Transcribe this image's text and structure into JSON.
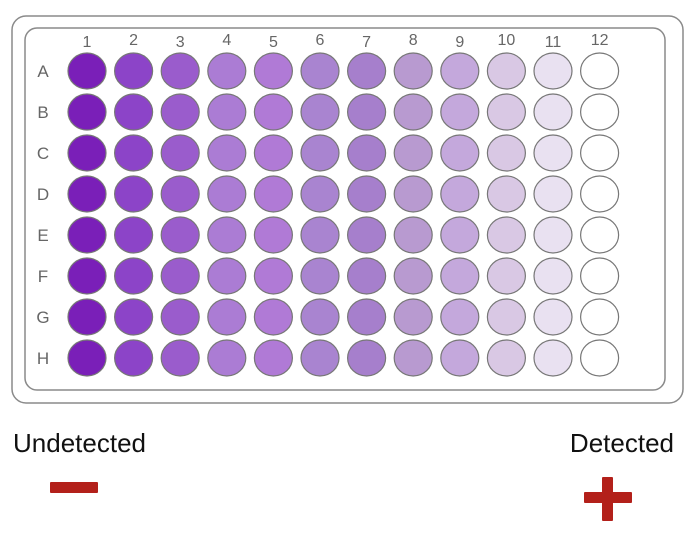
{
  "plate": {
    "columns": [
      "1",
      "2",
      "3",
      "4",
      "5",
      "6",
      "7",
      "8",
      "9",
      "10",
      "11",
      "12"
    ],
    "rows": [
      "A",
      "B",
      "C",
      "D",
      "E",
      "F",
      "G",
      "H"
    ],
    "column_colors": [
      "#7a1fb8",
      "#8c44c8",
      "#9a5ccc",
      "#ab7cd4",
      "#b07ad6",
      "#a984d0",
      "#a67fcc",
      "#b89ad0",
      "#c4a8dc",
      "#d9c8e4",
      "#e9e1f1",
      "#ffffff"
    ]
  },
  "legend": {
    "left_label": "Undetected",
    "right_label": "Detected",
    "minus_icon": "minus-icon",
    "plus_icon": "plus-icon",
    "symbol_color": "#b3201a"
  }
}
